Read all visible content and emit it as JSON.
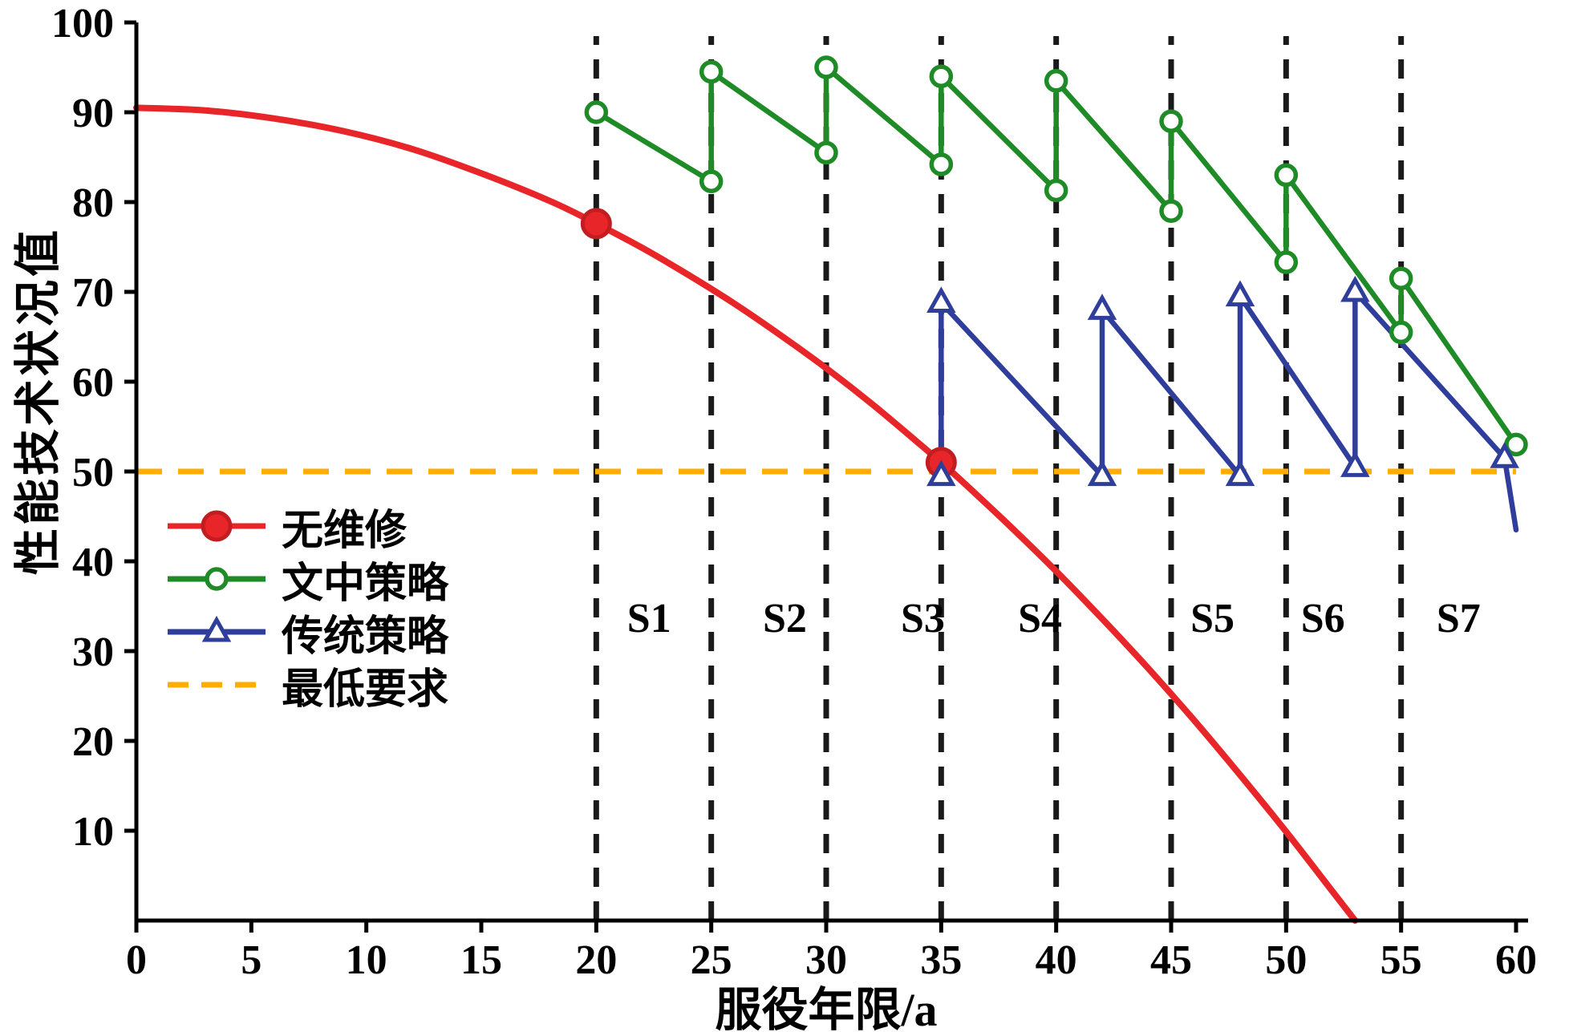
{
  "chart_data": {
    "type": "line",
    "title": "",
    "xlabel": "服役年限/a",
    "ylabel": "性能技术状况值",
    "xlim": [
      0,
      60
    ],
    "ylim": [
      0,
      100
    ],
    "xticks": [
      0,
      5,
      10,
      15,
      20,
      25,
      30,
      35,
      40,
      45,
      50,
      55,
      60
    ],
    "yticks": [
      10,
      20,
      30,
      40,
      50,
      60,
      70,
      80,
      90,
      100
    ],
    "grid": false,
    "stage_boundaries_x": [
      20,
      25,
      30,
      35,
      40,
      45,
      50,
      55
    ],
    "stage_boundary_color": "#1a1a1a",
    "stage_labels": [
      {
        "label": "S1",
        "x": 22.3
      },
      {
        "label": "S2",
        "x": 28.2
      },
      {
        "label": "S3",
        "x": 34.2
      },
      {
        "label": "S4",
        "x": 39.3
      },
      {
        "label": "S5",
        "x": 46.8
      },
      {
        "label": "S6",
        "x": 51.6
      },
      {
        "label": "S7",
        "x": 57.5
      }
    ],
    "min_requirement": {
      "label": "最低要求",
      "y": 50,
      "color": "#FFAE00"
    },
    "series": [
      {
        "name": "无维修",
        "kind": "degradation-curve",
        "color": "#E8262A",
        "marker": "filled-circle",
        "marker_color": "#C21E22",
        "points": [
          [
            0,
            90.5
          ],
          [
            3,
            90.2
          ],
          [
            6,
            89.3
          ],
          [
            9,
            87.9
          ],
          [
            12,
            85.9
          ],
          [
            15,
            83.2
          ],
          [
            18,
            80.1
          ],
          [
            20,
            77.6
          ],
          [
            22,
            74.9
          ],
          [
            24,
            71.9
          ],
          [
            26,
            68.7
          ],
          [
            28,
            65.2
          ],
          [
            30,
            61.5
          ],
          [
            32,
            57.5
          ],
          [
            34,
            53.2
          ],
          [
            35,
            51
          ],
          [
            36,
            48.7
          ],
          [
            38,
            43.9
          ],
          [
            40,
            38.9
          ],
          [
            42,
            33.6
          ],
          [
            44,
            28.1
          ],
          [
            46,
            22.3
          ],
          [
            48,
            16.2
          ],
          [
            50,
            9.9
          ],
          [
            52,
            3.3
          ],
          [
            53,
            0
          ]
        ],
        "marker_points": [
          [
            20,
            77.6
          ],
          [
            35,
            51
          ]
        ]
      },
      {
        "name": "文中策略",
        "kind": "maintenance-sawtooth",
        "color": "#1F8B26",
        "marker": "open-circle",
        "points": [
          [
            20,
            90
          ],
          [
            25,
            82.3
          ],
          [
            25,
            94.5
          ],
          [
            30,
            85.5
          ],
          [
            30,
            95
          ],
          [
            35,
            84.2
          ],
          [
            35,
            94
          ],
          [
            40,
            81.3
          ],
          [
            40,
            93.5
          ],
          [
            45,
            79
          ],
          [
            45,
            89
          ],
          [
            50,
            73.3
          ],
          [
            50,
            83
          ],
          [
            55,
            65.5
          ],
          [
            55,
            71.5
          ],
          [
            60,
            53
          ]
        ]
      },
      {
        "name": "传统策略",
        "kind": "maintenance-sawtooth",
        "color": "#2F3E9B",
        "marker": "open-triangle",
        "points": [
          [
            35,
            49.5
          ],
          [
            35,
            68.8
          ],
          [
            42,
            49.5
          ],
          [
            42,
            68
          ],
          [
            48,
            49.5
          ],
          [
            48,
            69.5
          ],
          [
            53,
            50.5
          ],
          [
            53,
            70
          ],
          [
            59.5,
            51.5
          ],
          [
            60,
            43.5
          ]
        ],
        "marker_points": [
          [
            35,
            49.5
          ],
          [
            35,
            68.8
          ],
          [
            42,
            49.5
          ],
          [
            42,
            68
          ],
          [
            48,
            49.5
          ],
          [
            48,
            69.5
          ],
          [
            53,
            50.5
          ],
          [
            53,
            70
          ],
          [
            59.5,
            51.5
          ]
        ]
      }
    ],
    "legend": {
      "position": "lower-left",
      "items": [
        {
          "label": "无维修",
          "color": "#E8262A",
          "line": "solid",
          "marker": "filled-circle",
          "marker_color": "#C21E22"
        },
        {
          "label": "文中策略",
          "color": "#1F8B26",
          "line": "solid",
          "marker": "open-circle"
        },
        {
          "label": "传统策略",
          "color": "#2F3E9B",
          "line": "solid",
          "marker": "open-triangle"
        },
        {
          "label": "最低要求",
          "color": "#FFAE00",
          "line": "dashed",
          "marker": "none"
        }
      ]
    },
    "axis_color": "#000000",
    "tick_label_color": "#000000"
  }
}
